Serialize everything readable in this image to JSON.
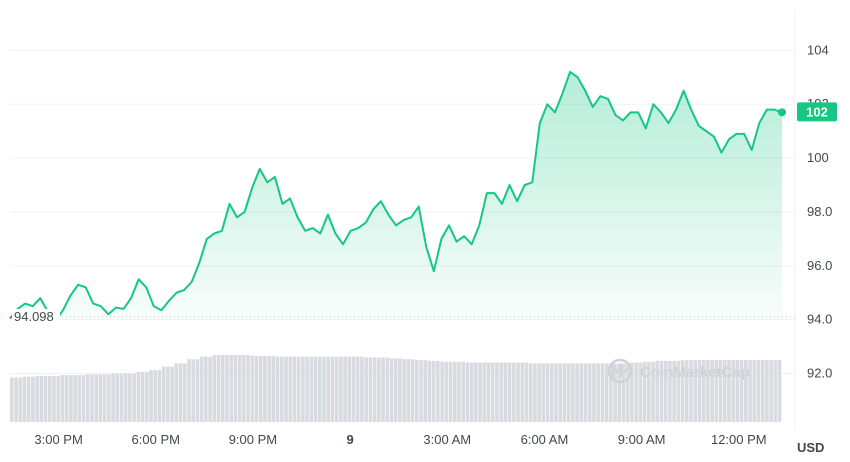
{
  "chart_data": {
    "type": "area",
    "unit": "USD",
    "baseline_value": 94.098,
    "baseline_label": "94.098",
    "current_value_label": "102",
    "ylim": [
      90.2,
      105.5
    ],
    "y_ticks": [
      "92.0",
      "94.0",
      "96.0",
      "98.0",
      "100",
      "102",
      "104"
    ],
    "x_ticks": [
      "3:00 PM",
      "6:00 PM",
      "9:00 PM",
      "9",
      "3:00 AM",
      "6:00 AM",
      "9:00 AM",
      "12:00 PM"
    ],
    "x_start": "1:30 PM",
    "x_end": "1:20 PM",
    "grid": true,
    "colors": {
      "up": "#16c784",
      "down": "#ea3943",
      "baseline": "#b0b6bd",
      "volume": "#d8dbdf"
    },
    "watermark": "CoinMarketCap",
    "series": [
      {
        "values": [
          94.05,
          94.4,
          94.6,
          94.5,
          94.8,
          94.3,
          93.95,
          94.35,
          94.9,
          95.3,
          95.2,
          94.6,
          94.5,
          94.2,
          94.45,
          94.4,
          94.8,
          95.5,
          95.2,
          94.5,
          94.35,
          94.7,
          95.0,
          95.1,
          95.4,
          96.1,
          97.0,
          97.2,
          97.3,
          98.3,
          97.8,
          98.0,
          98.9,
          99.6,
          99.1,
          99.3,
          98.3,
          98.5,
          97.8,
          97.3,
          97.4,
          97.2,
          97.9,
          97.2,
          96.8,
          97.3,
          97.4,
          97.6,
          98.1,
          98.4,
          97.9,
          97.5,
          97.7,
          97.8,
          98.2,
          96.7,
          95.8,
          97.0,
          97.5,
          96.9,
          97.1,
          96.8,
          97.5,
          98.7,
          98.7,
          98.3,
          99.0,
          98.4,
          99.0,
          99.1,
          101.3,
          102.0,
          101.7,
          102.4,
          103.2,
          103.0,
          102.5,
          101.9,
          102.3,
          102.2,
          101.6,
          101.4,
          101.7,
          101.7,
          101.1,
          102.0,
          101.7,
          101.3,
          101.8,
          102.5,
          101.8,
          101.2,
          101.0,
          100.8,
          100.2,
          100.7,
          100.9,
          100.9,
          100.3,
          101.3,
          101.8,
          101.8,
          101.7
        ]
      }
    ],
    "volume": [
      0.53,
      0.54,
      0.55,
      0.55,
      0.56,
      0.56,
      0.57,
      0.57,
      0.58,
      0.58,
      0.6,
      0.62,
      0.66,
      0.7,
      0.75,
      0.78,
      0.8,
      0.8,
      0.8,
      0.79,
      0.79,
      0.78,
      0.78,
      0.78,
      0.78,
      0.78,
      0.78,
      0.78,
      0.77,
      0.77,
      0.76,
      0.75,
      0.74,
      0.73,
      0.72,
      0.72,
      0.71,
      0.71,
      0.71,
      0.71,
      0.71,
      0.7,
      0.7,
      0.7,
      0.7,
      0.7,
      0.7,
      0.7,
      0.7,
      0.71,
      0.72,
      0.73,
      0.73,
      0.74,
      0.74,
      0.74,
      0.74,
      0.74,
      0.74,
      0.74,
      0.74
    ]
  }
}
